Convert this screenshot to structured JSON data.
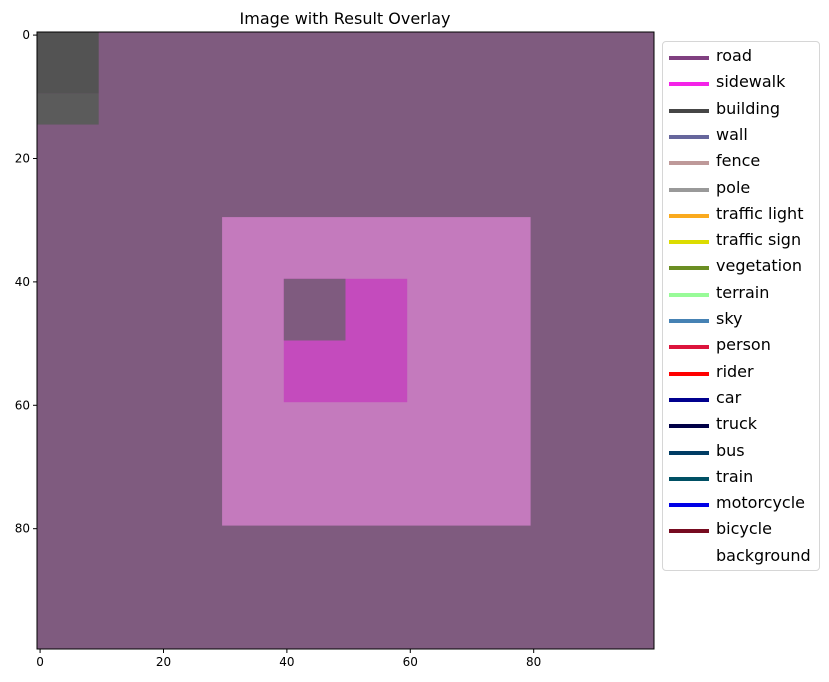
{
  "chart_data": {
    "type": "heatmap",
    "title": "Image with Result Overlay",
    "xlabel": "",
    "ylabel": "",
    "xlim": [
      -0.5,
      99.5
    ],
    "ylim": [
      99.5,
      -0.5
    ],
    "x_ticks": [
      0,
      20,
      40,
      60,
      80
    ],
    "y_ticks": [
      0,
      20,
      40,
      60,
      80
    ],
    "grid": false,
    "legend_position": "outside-right",
    "background": {
      "class": "road",
      "color": "#7f5b7f"
    },
    "regions": [
      {
        "label": "building",
        "x": [
          0,
          9
        ],
        "y": [
          0,
          9
        ],
        "color": "#535353"
      },
      {
        "label": "building",
        "x": [
          0,
          9
        ],
        "y": [
          10,
          14
        ],
        "color": "#5b5b5b"
      },
      {
        "label": "sidewalk",
        "x": [
          30,
          79
        ],
        "y": [
          30,
          79
        ],
        "color": "#c47abd"
      },
      {
        "label": "sidewalk",
        "x": [
          40,
          59
        ],
        "y": [
          40,
          59
        ],
        "color": "#c44bbd"
      },
      {
        "label": "road",
        "x": [
          40,
          49
        ],
        "y": [
          40,
          49
        ],
        "color": "#7f5b7f"
      }
    ],
    "legend": [
      {
        "label": "road",
        "color": "#804080"
      },
      {
        "label": "sidewalk",
        "color": "#f423e8"
      },
      {
        "label": "building",
        "color": "#464646"
      },
      {
        "label": "wall",
        "color": "#66669c"
      },
      {
        "label": "fence",
        "color": "#be9999"
      },
      {
        "label": "pole",
        "color": "#999999"
      },
      {
        "label": "traffic light",
        "color": "#faaa1e"
      },
      {
        "label": "traffic sign",
        "color": "#dcdc00"
      },
      {
        "label": "vegetation",
        "color": "#6b8e23"
      },
      {
        "label": "terrain",
        "color": "#98fb98"
      },
      {
        "label": "sky",
        "color": "#4682b4"
      },
      {
        "label": "person",
        "color": "#dc143c"
      },
      {
        "label": "rider",
        "color": "#ff0000"
      },
      {
        "label": "car",
        "color": "#00008e"
      },
      {
        "label": "truck",
        "color": "#000046"
      },
      {
        "label": "bus",
        "color": "#003c64"
      },
      {
        "label": "train",
        "color": "#005064"
      },
      {
        "label": "motorcycle",
        "color": "#0000e6"
      },
      {
        "label": "bicycle",
        "color": "#770b20"
      },
      {
        "label": "background",
        "color": "#ffffff"
      }
    ]
  }
}
